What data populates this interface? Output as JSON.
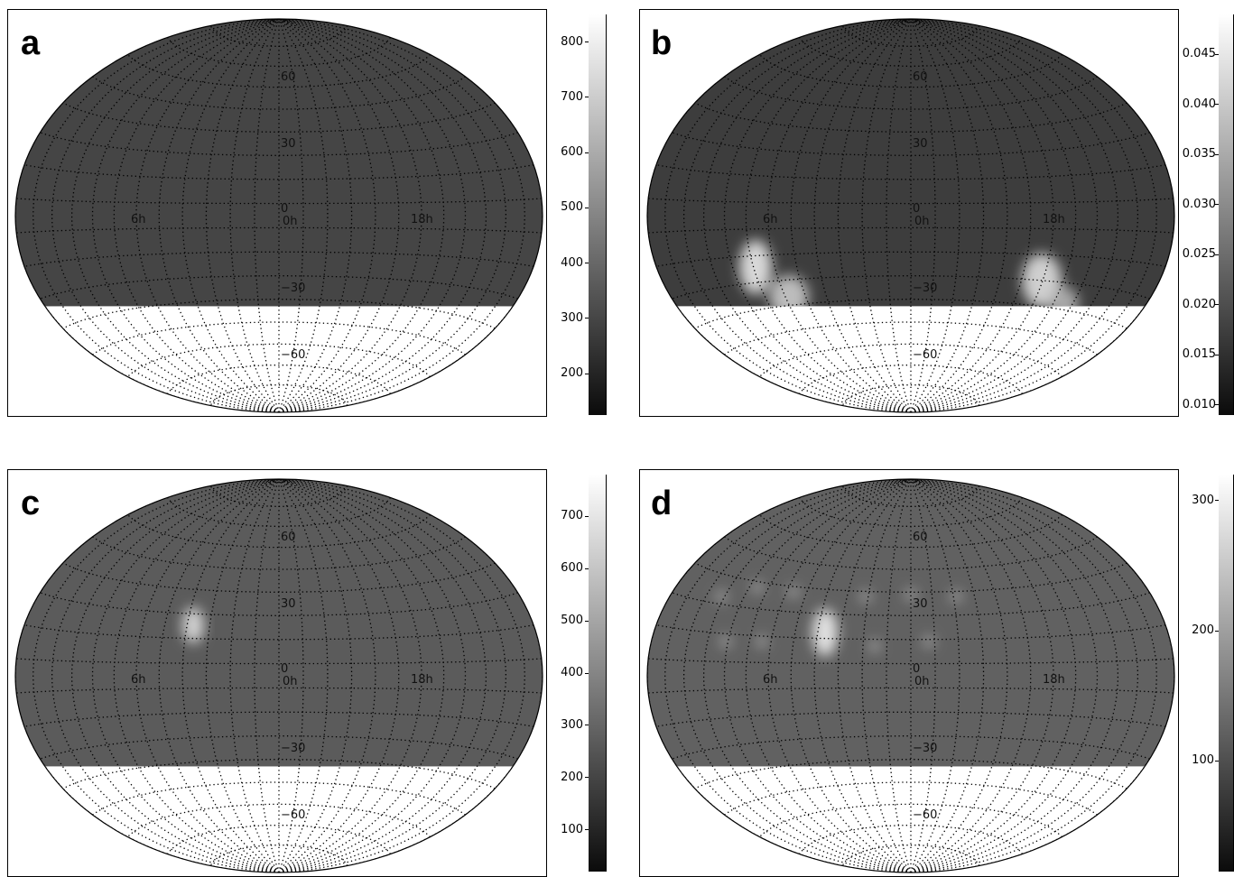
{
  "panels": [
    {
      "id": "a",
      "label": "a",
      "colorbar_ticks": [
        "800",
        "700",
        "600",
        "500",
        "400",
        "300",
        "200"
      ],
      "colorbar_values": [
        800,
        700,
        600,
        500,
        400,
        300,
        200
      ],
      "colorbar_range": [
        125,
        850
      ],
      "pattern": "bright-band-ring"
    },
    {
      "id": "b",
      "label": "b",
      "colorbar_ticks": [
        "0.045",
        "0.040",
        "0.035",
        "0.030",
        "0.025",
        "0.020",
        "0.015",
        "0.010"
      ],
      "colorbar_values": [
        0.045,
        0.04,
        0.035,
        0.03,
        0.025,
        0.02,
        0.015,
        0.01
      ],
      "colorbar_range": [
        0.009,
        0.049
      ],
      "pattern": "faint-ring-bright-lower"
    },
    {
      "id": "c",
      "label": "c",
      "colorbar_ticks": [
        "700",
        "600",
        "500",
        "400",
        "300",
        "200",
        "100"
      ],
      "colorbar_values": [
        700,
        600,
        500,
        400,
        300,
        200,
        100
      ],
      "colorbar_range": [
        20,
        780
      ],
      "pattern": "uniform-gray-spot"
    },
    {
      "id": "d",
      "label": "d",
      "colorbar_ticks": [
        "300",
        "200",
        "100"
      ],
      "colorbar_values": [
        300,
        200,
        100
      ],
      "colorbar_range": [
        15,
        320
      ],
      "pattern": "mottled-gray-spot"
    }
  ],
  "grid_labels": {
    "lat_60": "60",
    "lat_30": "30",
    "lat_0": "0",
    "lat_m30": "−30",
    "lat_m60": "−60",
    "ra_6h": "6h",
    "ra_0h": "0h",
    "ra_18h": "18h"
  },
  "map": {
    "projection": "Hammer-Aitoff",
    "coverage_south_limit_deg": -38,
    "colormap": "grayscale"
  }
}
